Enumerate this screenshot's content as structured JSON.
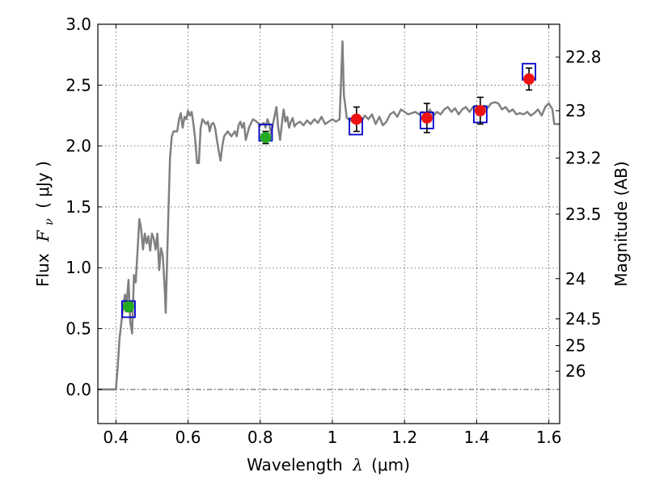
{
  "chart_data": {
    "type": "scatter",
    "xlabel_prefix": "Wavelength",
    "xlabel_lambda": "λ",
    "xlabel_unit": "(μm)",
    "ylabel_prefix": "Flux",
    "ylabel_var": "F",
    "ylabel_sub": "ν",
    "ylabel_unit": "( μJy )",
    "y2label": "Magnitude (AB)",
    "xlim": [
      0.35,
      1.63
    ],
    "ylim": [
      -0.28,
      3.0
    ],
    "grid": true,
    "x_ticks": [
      0.4,
      0.6,
      0.8,
      1.0,
      1.2,
      1.4,
      1.6
    ],
    "x_tick_labels": [
      "0.4",
      "0.6",
      "0.8",
      "1",
      "1.2",
      "1.4",
      "1.6"
    ],
    "y_ticks": [
      0.0,
      0.5,
      1.0,
      1.5,
      2.0,
      2.5,
      3.0
    ],
    "y_tick_labels": [
      "0.0",
      "0.5",
      "1.0",
      "1.5",
      "2.0",
      "2.5",
      "3.0"
    ],
    "mag_ticks": [
      {
        "label": "22.8",
        "flux": 2.73
      },
      {
        "label": "23",
        "flux": 2.29
      },
      {
        "label": "23.2",
        "flux": 1.9
      },
      {
        "label": "23.5",
        "flux": 1.44
      },
      {
        "label": "24",
        "flux": 0.91
      },
      {
        "label": "24.5",
        "flux": 0.58
      },
      {
        "label": "25",
        "flux": 0.36
      },
      {
        "label": "26",
        "flux": 0.15
      }
    ],
    "template_spectrum": [
      [
        0.35,
        0.0
      ],
      [
        0.39,
        0.0
      ],
      [
        0.4,
        0.0
      ],
      [
        0.405,
        0.18
      ],
      [
        0.41,
        0.42
      ],
      [
        0.418,
        0.62
      ],
      [
        0.425,
        0.78
      ],
      [
        0.43,
        0.72
      ],
      [
        0.435,
        0.9
      ],
      [
        0.44,
        0.55
      ],
      [
        0.445,
        0.46
      ],
      [
        0.45,
        0.94
      ],
      [
        0.455,
        0.88
      ],
      [
        0.46,
        1.14
      ],
      [
        0.465,
        1.4
      ],
      [
        0.47,
        1.32
      ],
      [
        0.475,
        1.15
      ],
      [
        0.48,
        1.28
      ],
      [
        0.485,
        1.2
      ],
      [
        0.49,
        1.26
      ],
      [
        0.495,
        1.14
      ],
      [
        0.5,
        1.28
      ],
      [
        0.505,
        1.24
      ],
      [
        0.51,
        1.15
      ],
      [
        0.515,
        1.28
      ],
      [
        0.52,
        0.98
      ],
      [
        0.525,
        1.16
      ],
      [
        0.53,
        1.1
      ],
      [
        0.535,
        0.85
      ],
      [
        0.538,
        0.63
      ],
      [
        0.545,
        1.4
      ],
      [
        0.55,
        1.9
      ],
      [
        0.555,
        2.08
      ],
      [
        0.56,
        2.12
      ],
      [
        0.57,
        2.12
      ],
      [
        0.575,
        2.22
      ],
      [
        0.58,
        2.27
      ],
      [
        0.585,
        2.15
      ],
      [
        0.59,
        2.24
      ],
      [
        0.595,
        2.22
      ],
      [
        0.6,
        2.29
      ],
      [
        0.605,
        2.25
      ],
      [
        0.61,
        2.28
      ],
      [
        0.615,
        2.18
      ],
      [
        0.62,
        2.05
      ],
      [
        0.625,
        1.86
      ],
      [
        0.63,
        1.86
      ],
      [
        0.635,
        2.15
      ],
      [
        0.64,
        2.22
      ],
      [
        0.65,
        2.18
      ],
      [
        0.655,
        2.2
      ],
      [
        0.66,
        2.12
      ],
      [
        0.665,
        2.18
      ],
      [
        0.67,
        2.19
      ],
      [
        0.675,
        2.15
      ],
      [
        0.68,
        2.05
      ],
      [
        0.685,
        1.96
      ],
      [
        0.69,
        1.88
      ],
      [
        0.695,
        2.0
      ],
      [
        0.7,
        2.08
      ],
      [
        0.71,
        2.12
      ],
      [
        0.72,
        2.08
      ],
      [
        0.73,
        2.12
      ],
      [
        0.735,
        2.08
      ],
      [
        0.74,
        2.17
      ],
      [
        0.745,
        2.2
      ],
      [
        0.75,
        2.15
      ],
      [
        0.755,
        2.19
      ],
      [
        0.76,
        2.05
      ],
      [
        0.77,
        2.16
      ],
      [
        0.78,
        2.22
      ],
      [
        0.79,
        2.2
      ],
      [
        0.8,
        2.17
      ],
      [
        0.81,
        2.19
      ],
      [
        0.815,
        2.15
      ],
      [
        0.82,
        2.22
      ],
      [
        0.825,
        2.18
      ],
      [
        0.83,
        2.1
      ],
      [
        0.84,
        2.25
      ],
      [
        0.845,
        2.32
      ],
      [
        0.85,
        2.15
      ],
      [
        0.855,
        2.05
      ],
      [
        0.86,
        2.18
      ],
      [
        0.865,
        2.3
      ],
      [
        0.87,
        2.2
      ],
      [
        0.875,
        2.24
      ],
      [
        0.88,
        2.15
      ],
      [
        0.885,
        2.2
      ],
      [
        0.89,
        2.23
      ],
      [
        0.895,
        2.16
      ],
      [
        0.9,
        2.18
      ],
      [
        0.91,
        2.2
      ],
      [
        0.92,
        2.17
      ],
      [
        0.93,
        2.21
      ],
      [
        0.94,
        2.18
      ],
      [
        0.95,
        2.22
      ],
      [
        0.96,
        2.19
      ],
      [
        0.97,
        2.24
      ],
      [
        0.98,
        2.18
      ],
      [
        0.99,
        2.2
      ],
      [
        1.0,
        2.22
      ],
      [
        1.01,
        2.2
      ],
      [
        1.02,
        2.22
      ],
      [
        1.025,
        2.6
      ],
      [
        1.028,
        2.86
      ],
      [
        1.032,
        2.42
      ],
      [
        1.04,
        2.23
      ],
      [
        1.05,
        2.21
      ],
      [
        1.06,
        2.19
      ],
      [
        1.07,
        2.24
      ],
      [
        1.08,
        2.2
      ],
      [
        1.09,
        2.25
      ],
      [
        1.1,
        2.22
      ],
      [
        1.11,
        2.26
      ],
      [
        1.12,
        2.18
      ],
      [
        1.13,
        2.24
      ],
      [
        1.14,
        2.17
      ],
      [
        1.15,
        2.2
      ],
      [
        1.16,
        2.26
      ],
      [
        1.17,
        2.28
      ],
      [
        1.18,
        2.24
      ],
      [
        1.19,
        2.3
      ],
      [
        1.2,
        2.28
      ],
      [
        1.21,
        2.26
      ],
      [
        1.22,
        2.27
      ],
      [
        1.23,
        2.28
      ],
      [
        1.24,
        2.26
      ],
      [
        1.25,
        2.28
      ],
      [
        1.26,
        2.24
      ],
      [
        1.27,
        2.3
      ],
      [
        1.28,
        2.25
      ],
      [
        1.29,
        2.28
      ],
      [
        1.3,
        2.26
      ],
      [
        1.31,
        2.3
      ],
      [
        1.32,
        2.32
      ],
      [
        1.33,
        2.28
      ],
      [
        1.34,
        2.31
      ],
      [
        1.35,
        2.26
      ],
      [
        1.36,
        2.3
      ],
      [
        1.37,
        2.32
      ],
      [
        1.38,
        2.28
      ],
      [
        1.39,
        2.32
      ],
      [
        1.4,
        2.33
      ],
      [
        1.41,
        2.31
      ],
      [
        1.42,
        2.33
      ],
      [
        1.43,
        2.31
      ],
      [
        1.44,
        2.35
      ],
      [
        1.45,
        2.36
      ],
      [
        1.46,
        2.35
      ],
      [
        1.47,
        2.3
      ],
      [
        1.48,
        2.32
      ],
      [
        1.49,
        2.28
      ],
      [
        1.5,
        2.3
      ],
      [
        1.51,
        2.26
      ],
      [
        1.52,
        2.27
      ],
      [
        1.53,
        2.26
      ],
      [
        1.54,
        2.28
      ],
      [
        1.55,
        2.25
      ],
      [
        1.56,
        2.27
      ],
      [
        1.57,
        2.3
      ],
      [
        1.58,
        2.25
      ],
      [
        1.59,
        2.32
      ],
      [
        1.6,
        2.35
      ],
      [
        1.61,
        2.3
      ],
      [
        1.615,
        2.18
      ],
      [
        1.63,
        2.18
      ]
    ],
    "model_photometry": [
      {
        "x": 0.435,
        "y": 0.66
      },
      {
        "x": 0.815,
        "y": 2.11
      },
      {
        "x": 1.065,
        "y": 2.16
      },
      {
        "x": 1.262,
        "y": 2.21
      },
      {
        "x": 1.41,
        "y": 2.26
      },
      {
        "x": 1.545,
        "y": 2.61
      }
    ],
    "observed_green": [
      {
        "x": 0.435,
        "y": 0.68,
        "err": 0.04
      },
      {
        "x": 0.815,
        "y": 2.07,
        "err": 0.05
      }
    ],
    "observed_red": [
      {
        "x": 1.067,
        "y": 2.22,
        "err": 0.1
      },
      {
        "x": 1.262,
        "y": 2.23,
        "err": 0.12
      },
      {
        "x": 1.41,
        "y": 2.29,
        "err": 0.11
      },
      {
        "x": 1.545,
        "y": 2.55,
        "err": 0.09
      }
    ],
    "colors": {
      "template": "#808080",
      "model_box": "#0000cc",
      "observed_green": "#22aa22",
      "observed_red": "#ee1111",
      "error_bar": "#000000",
      "grid": "#555555"
    }
  }
}
